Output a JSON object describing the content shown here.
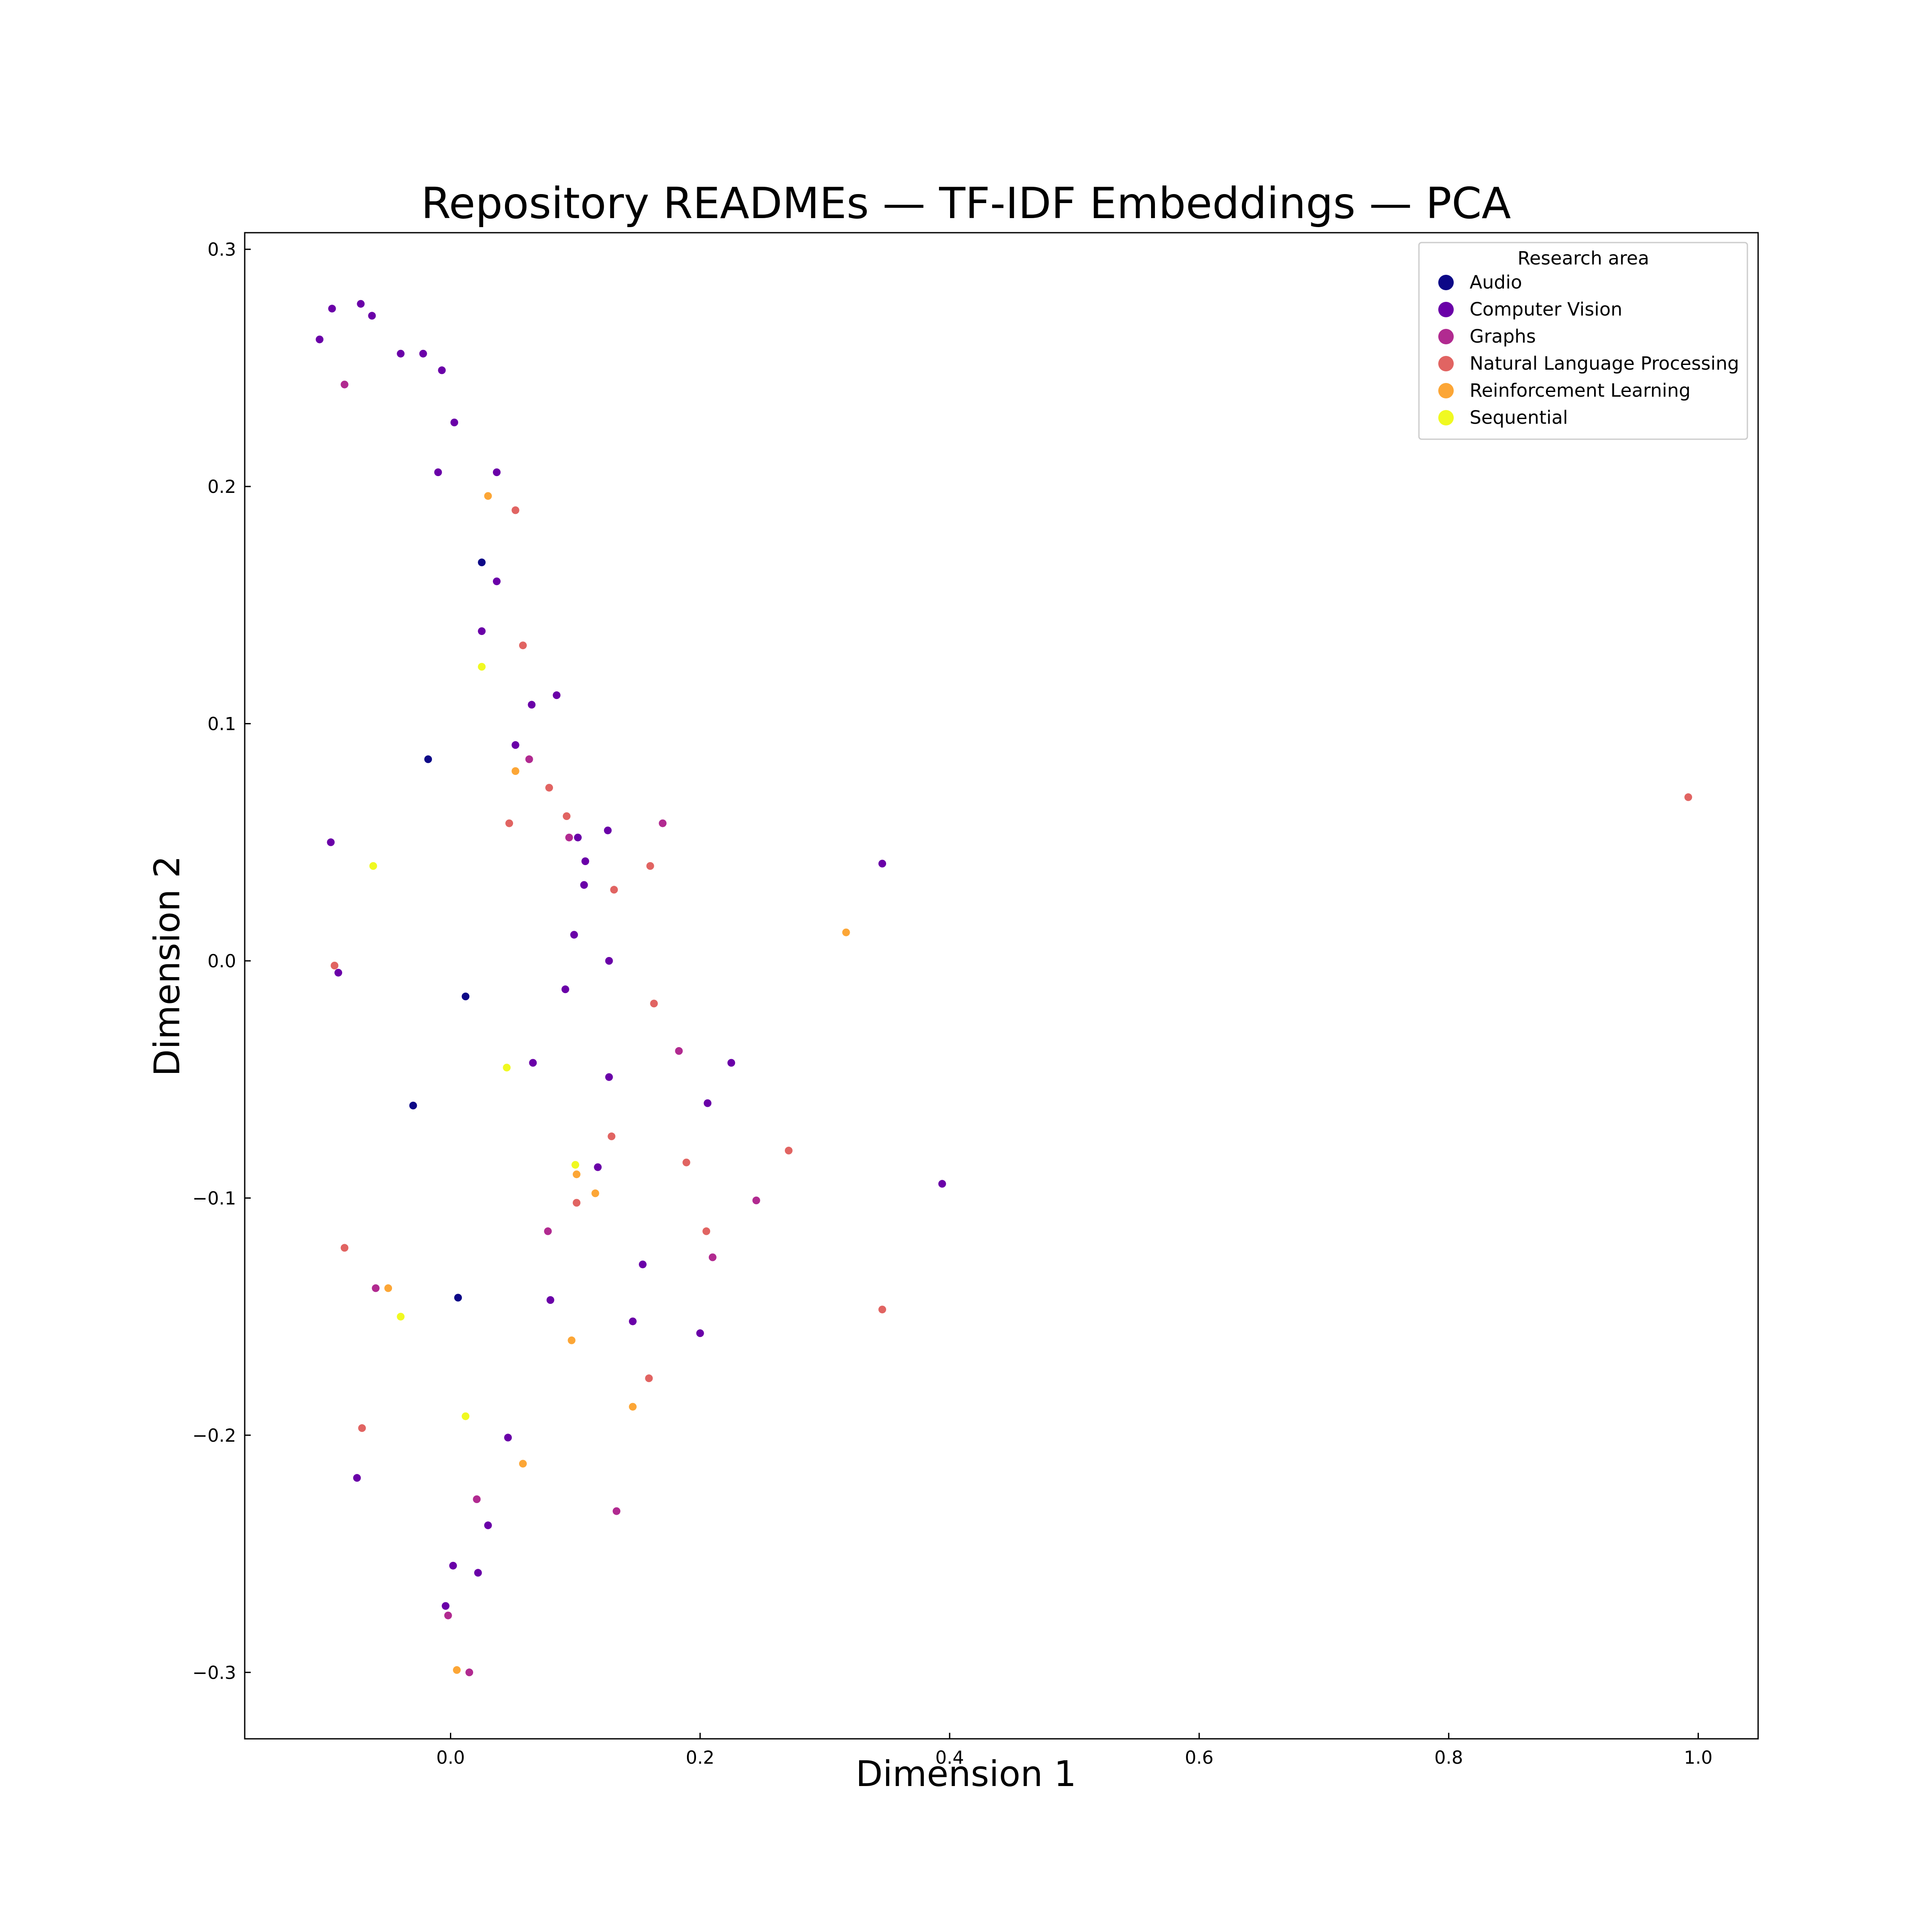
{
  "chart_data": {
    "type": "scatter",
    "title": "Repository READMEs — TF-IDF Embeddings — PCA",
    "xlabel": "Dimension 1",
    "ylabel": "Dimension 2",
    "xlim": [
      -0.165,
      1.048
    ],
    "ylim": [
      -0.328,
      0.307
    ],
    "xticks": [
      0.0,
      0.2,
      0.4,
      0.6,
      0.8,
      1.0
    ],
    "xtick_labels": [
      "0.0",
      "0.2",
      "0.4",
      "0.6",
      "0.8",
      "1.0"
    ],
    "yticks": [
      -0.3,
      -0.2,
      -0.1,
      0.0,
      0.1,
      0.2,
      0.3
    ],
    "ytick_labels": [
      "−0.3",
      "−0.2",
      "−0.1",
      "0.0",
      "0.1",
      "0.2",
      "0.3"
    ],
    "grid": false,
    "legend": {
      "title": "Research area",
      "placement": "top-right"
    },
    "series": [
      {
        "name": "Audio",
        "color": "#0d0887",
        "points": [
          [
            0.025,
            0.168
          ],
          [
            -0.018,
            0.085
          ],
          [
            0.012,
            -0.015
          ],
          [
            -0.03,
            -0.061
          ],
          [
            0.006,
            -0.142
          ]
        ]
      },
      {
        "name": "Computer Vision",
        "color": "#6a00a8",
        "points": [
          [
            -0.105,
            0.262
          ],
          [
            -0.095,
            0.275
          ],
          [
            -0.072,
            0.277
          ],
          [
            -0.063,
            0.272
          ],
          [
            -0.04,
            0.256
          ],
          [
            -0.022,
            0.256
          ],
          [
            -0.007,
            0.249
          ],
          [
            -0.01,
            0.206
          ],
          [
            0.003,
            0.227
          ],
          [
            0.037,
            0.206
          ],
          [
            0.037,
            0.16
          ],
          [
            0.025,
            0.139
          ],
          [
            0.065,
            0.108
          ],
          [
            0.085,
            0.112
          ],
          [
            0.052,
            0.091
          ],
          [
            0.102,
            0.052
          ],
          [
            0.126,
            0.055
          ],
          [
            0.108,
            0.042
          ],
          [
            0.346,
            0.041
          ],
          [
            0.107,
            0.032
          ],
          [
            0.099,
            0.011
          ],
          [
            0.127,
            0.0
          ],
          [
            0.092,
            -0.012
          ],
          [
            0.066,
            -0.043
          ],
          [
            0.127,
            -0.049
          ],
          [
            0.225,
            -0.043
          ],
          [
            0.206,
            -0.06
          ],
          [
            0.394,
            -0.094
          ],
          [
            0.118,
            -0.087
          ],
          [
            0.154,
            -0.128
          ],
          [
            0.2,
            -0.157
          ],
          [
            0.146,
            -0.152
          ],
          [
            0.08,
            -0.143
          ],
          [
            0.046,
            -0.201
          ],
          [
            0.03,
            -0.238
          ],
          [
            0.022,
            -0.258
          ],
          [
            0.002,
            -0.255
          ],
          [
            -0.004,
            -0.272
          ],
          [
            -0.075,
            -0.218
          ],
          [
            -0.09,
            -0.005
          ],
          [
            -0.096,
            0.05
          ]
        ]
      },
      {
        "name": "Graphs",
        "color": "#b12a90",
        "points": [
          [
            -0.085,
            0.243
          ],
          [
            0.063,
            0.085
          ],
          [
            0.095,
            0.052
          ],
          [
            0.17,
            0.058
          ],
          [
            0.183,
            -0.038
          ],
          [
            0.245,
            -0.101
          ],
          [
            0.21,
            -0.125
          ],
          [
            0.133,
            -0.232
          ],
          [
            0.015,
            -0.3
          ],
          [
            -0.002,
            -0.276
          ],
          [
            0.021,
            -0.227
          ],
          [
            -0.06,
            -0.138
          ],
          [
            0.078,
            -0.114
          ]
        ]
      },
      {
        "name": "Natural Language Processing",
        "color": "#e16462",
        "points": [
          [
            0.052,
            0.19
          ],
          [
            0.058,
            0.133
          ],
          [
            0.047,
            0.058
          ],
          [
            0.079,
            0.073
          ],
          [
            0.093,
            0.061
          ],
          [
            0.16,
            0.04
          ],
          [
            0.131,
            0.03
          ],
          [
            0.163,
            -0.018
          ],
          [
            0.129,
            -0.074
          ],
          [
            0.189,
            -0.085
          ],
          [
            0.271,
            -0.08
          ],
          [
            0.205,
            -0.114
          ],
          [
            0.346,
            -0.147
          ],
          [
            0.159,
            -0.176
          ],
          [
            0.992,
            0.069
          ],
          [
            -0.093,
            -0.002
          ],
          [
            -0.085,
            -0.121
          ],
          [
            -0.071,
            -0.197
          ],
          [
            0.101,
            -0.102
          ]
        ]
      },
      {
        "name": "Reinforcement Learning",
        "color": "#fca636",
        "points": [
          [
            0.03,
            0.196
          ],
          [
            0.052,
            0.08
          ],
          [
            0.317,
            0.012
          ],
          [
            0.116,
            -0.098
          ],
          [
            0.146,
            -0.188
          ],
          [
            0.005,
            -0.299
          ],
          [
            0.058,
            -0.212
          ],
          [
            -0.05,
            -0.138
          ],
          [
            0.101,
            -0.09
          ],
          [
            0.097,
            -0.16
          ]
        ]
      },
      {
        "name": "Sequential",
        "color": "#f0f921",
        "points": [
          [
            0.025,
            0.124
          ],
          [
            0.045,
            -0.045
          ],
          [
            0.1,
            -0.086
          ],
          [
            0.012,
            -0.192
          ],
          [
            -0.04,
            -0.15
          ],
          [
            -0.062,
            0.04
          ]
        ]
      }
    ]
  }
}
